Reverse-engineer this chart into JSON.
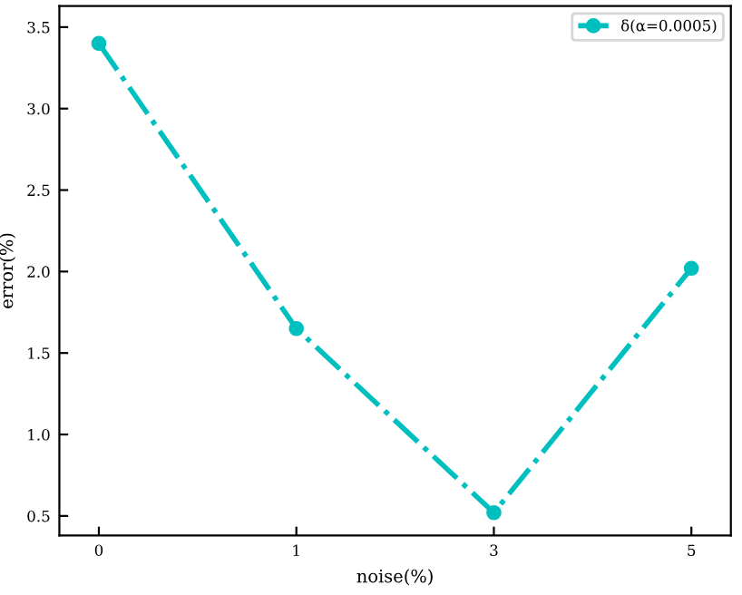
{
  "chart_data": {
    "type": "line",
    "xlabel": "noise(%)",
    "ylabel": "error(%)",
    "categories": [
      "0",
      "1",
      "3",
      "5"
    ],
    "series": [
      {
        "name": "δ(α=0.0005)",
        "color": "#00bfbf",
        "values": [
          3.4,
          1.65,
          0.52,
          2.02
        ]
      }
    ],
    "ylim": [
      0.38,
      3.63
    ],
    "yticks": [
      0.5,
      {
        "value": 1,
        "label": "1.0"
      },
      1.5,
      {
        "value": 2,
        "label": "2.0"
      },
      2.5,
      {
        "value": 3,
        "label": "3.0"
      },
      3.5
    ],
    "marker": "circle",
    "line_style": "dashdot",
    "legend": "top right",
    "grid": false
  }
}
